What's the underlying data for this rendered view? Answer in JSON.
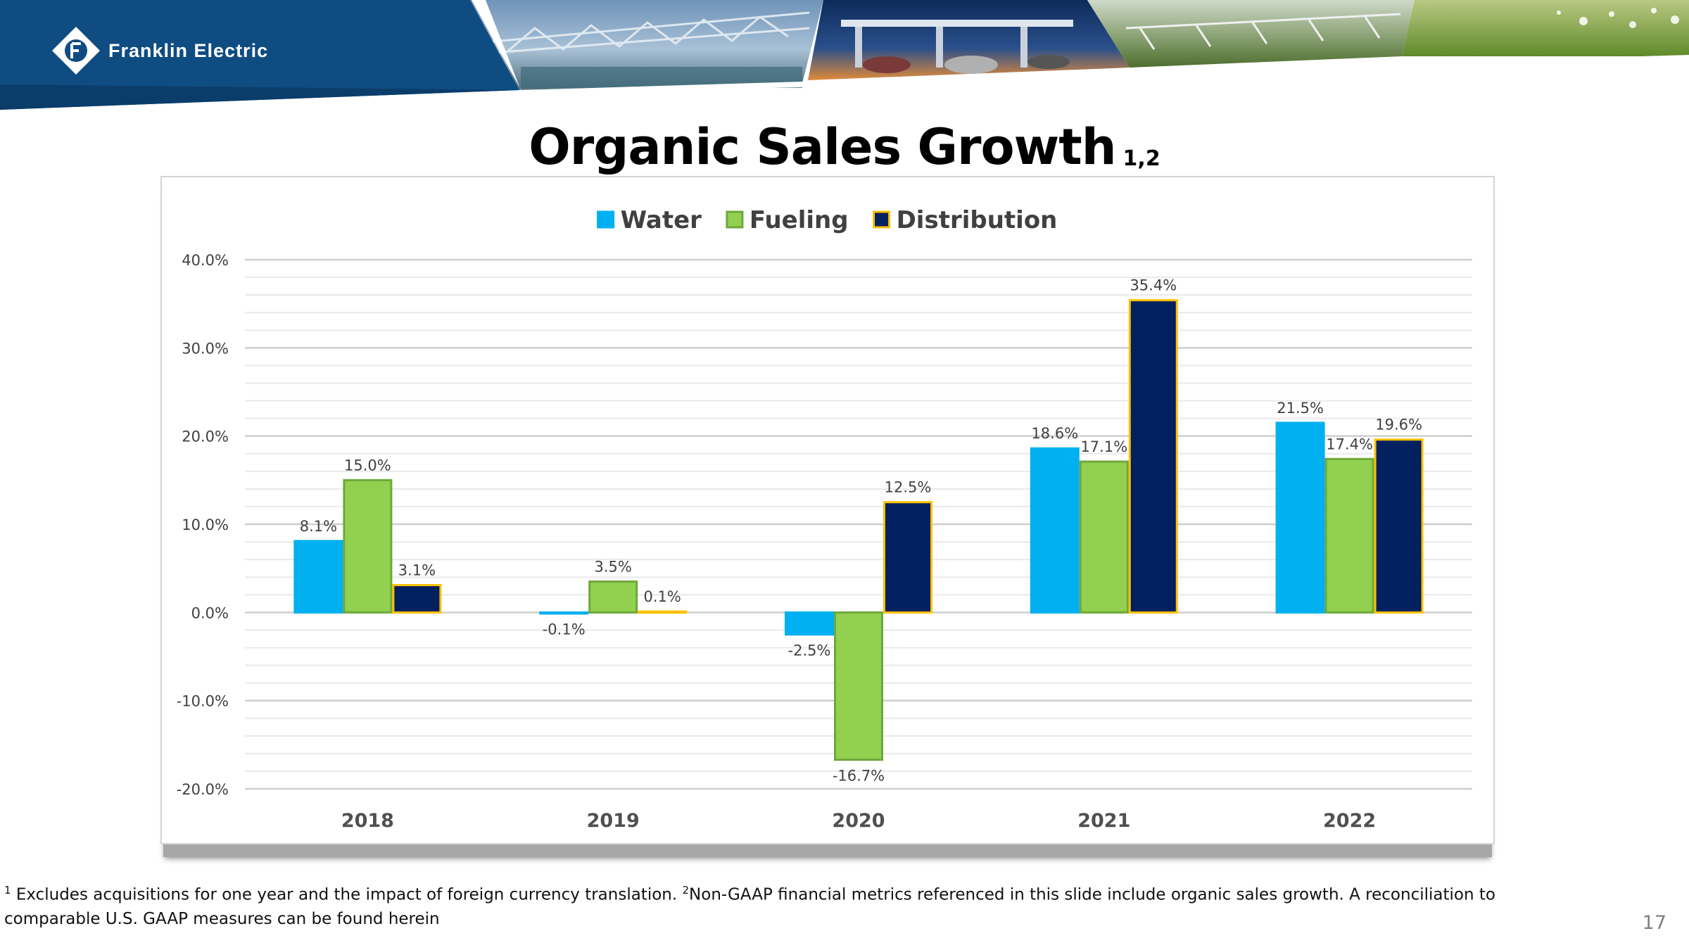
{
  "company": {
    "name": "Franklin Electric"
  },
  "slide": {
    "title": "Organic Sales Growth",
    "title_superscript": "1,2",
    "page_number": "17"
  },
  "footnote": {
    "sup1": "1",
    "text1": " Excludes acquisitions for one year and the impact of foreign currency translation. ",
    "sup2": "2",
    "text2": "Non-GAAP financial metrics referenced in this slide include organic sales growth. A reconciliation to comparable U.S. GAAP measures can be found herein"
  },
  "chart_data": {
    "type": "bar",
    "title": "Organic Sales Growth",
    "xlabel": "",
    "ylabel": "",
    "categories": [
      "2018",
      "2019",
      "2020",
      "2021",
      "2022"
    ],
    "series": [
      {
        "name": "Water",
        "color": "#00b0f0",
        "stroke": "#00b0f0",
        "values": [
          8.1,
          -0.1,
          -2.5,
          18.6,
          21.5
        ],
        "labels": [
          "8.1%",
          "-0.1%",
          "-2.5%",
          "18.6%",
          "21.5%"
        ]
      },
      {
        "name": "Fueling",
        "color": "#92d050",
        "stroke": "#6ea83a",
        "values": [
          15.0,
          3.5,
          -16.7,
          17.1,
          17.4
        ],
        "labels": [
          "15.0%",
          "3.5%",
          "-16.7%",
          "17.1%",
          "17.4%"
        ]
      },
      {
        "name": "Distribution",
        "color": "#002060",
        "stroke": "#ffc000",
        "values": [
          3.1,
          0.1,
          12.5,
          35.4,
          19.6
        ],
        "labels": [
          "3.1%",
          "0.1%",
          "12.5%",
          "35.4%",
          "19.6%"
        ]
      }
    ],
    "ylim": [
      -20,
      40
    ],
    "yticks": [
      -20,
      -10,
      0,
      10,
      20,
      30,
      40
    ],
    "ytick_labels": [
      "-20.0%",
      "-10.0%",
      "0.0%",
      "10.0%",
      "20.0%",
      "30.0%",
      "40.0%"
    ],
    "grid": true,
    "legend": "top-center"
  }
}
